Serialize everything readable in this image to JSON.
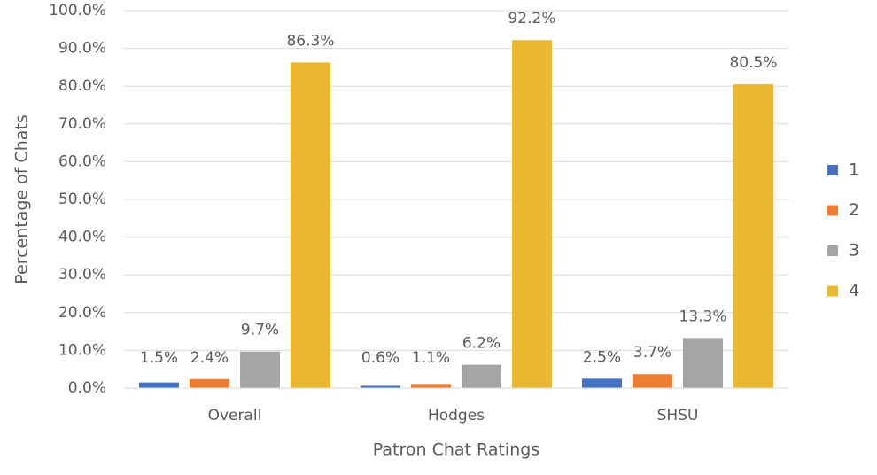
{
  "chart_data": {
    "type": "bar",
    "x_label": "Patron Chat Ratings",
    "y_label": "Percentage of Chats",
    "categories": [
      "Overall",
      "Hodges",
      "SHSU"
    ],
    "series": [
      {
        "name": "1",
        "color": "#4472c4",
        "values": [
          1.5,
          0.6,
          2.5
        ],
        "value_labels": [
          "1.5%",
          "0.6%",
          "2.5%"
        ]
      },
      {
        "name": "2",
        "color": "#ed7d31",
        "values": [
          2.4,
          1.1,
          3.7
        ],
        "value_labels": [
          "2.4%",
          "1.1%",
          "3.7%"
        ]
      },
      {
        "name": "3",
        "color": "#a5a5a5",
        "values": [
          9.7,
          6.2,
          13.3
        ],
        "value_labels": [
          "9.7%",
          "6.2%",
          "13.3%"
        ]
      },
      {
        "name": "4",
        "color": "#ebb92f",
        "values": [
          86.3,
          92.2,
          80.5
        ],
        "value_labels": [
          "86.3%",
          "92.2%",
          "80.5%"
        ]
      }
    ],
    "ylim": [
      0,
      100
    ],
    "yticks": [
      {
        "value": 0,
        "label": "0.0%"
      },
      {
        "value": 10,
        "label": "10.0%"
      },
      {
        "value": 20,
        "label": "20.0%"
      },
      {
        "value": 30,
        "label": "30.0%"
      },
      {
        "value": 40,
        "label": "40.0%"
      },
      {
        "value": 50,
        "label": "50.0%"
      },
      {
        "value": 60,
        "label": "60.0%"
      },
      {
        "value": 70,
        "label": "70.0%"
      },
      {
        "value": 80,
        "label": "80.0%"
      },
      {
        "value": 90,
        "label": "90.0%"
      },
      {
        "value": 100,
        "label": "100.0%"
      }
    ],
    "grid": true,
    "legend": "right"
  }
}
